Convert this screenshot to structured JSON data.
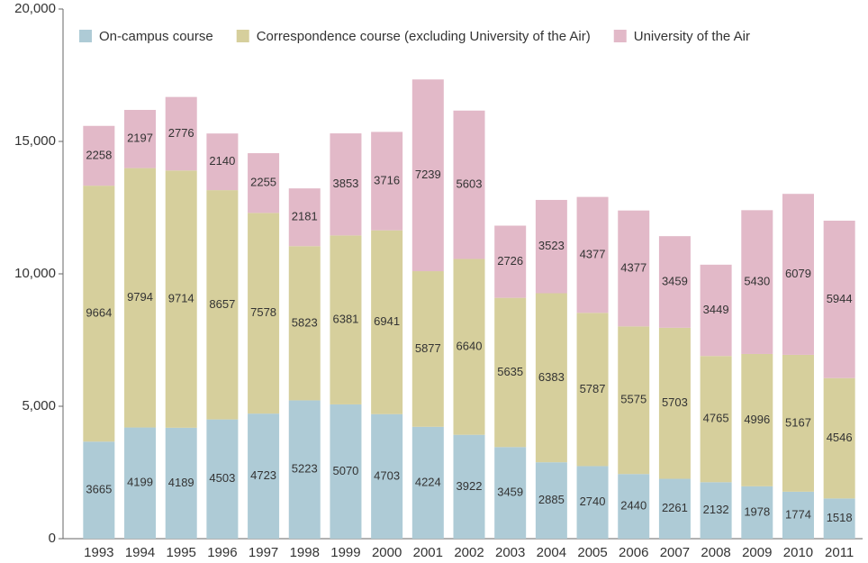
{
  "chart_data": {
    "type": "stacked_bar",
    "categories": [
      "1993",
      "1994",
      "1995",
      "1996",
      "1997",
      "1998",
      "1999",
      "2000",
      "2001",
      "2002",
      "2003",
      "2004",
      "2005",
      "2006",
      "2007",
      "2008",
      "2009",
      "2010",
      "2011"
    ],
    "series": [
      {
        "name": "On-campus course",
        "color": "#aecbd6",
        "values": [
          3665,
          4199,
          4189,
          4503,
          4723,
          5223,
          5070,
          4703,
          4224,
          3922,
          3459,
          2885,
          2740,
          2440,
          2261,
          2132,
          1978,
          1774,
          1518
        ]
      },
      {
        "name": "Correspondence course (excluding University of the Air)",
        "color": "#d6cf9c",
        "values": [
          9664,
          9794,
          9714,
          8657,
          7578,
          5823,
          6381,
          6941,
          5877,
          6640,
          5635,
          6383,
          5787,
          5575,
          5703,
          4765,
          4996,
          5167,
          4546
        ]
      },
      {
        "name": "University of the Air",
        "color": "#e2b9c8",
        "values": [
          2258,
          2197,
          2776,
          2140,
          2255,
          2181,
          3853,
          3716,
          7239,
          5603,
          2726,
          3523,
          4377,
          4377,
          3459,
          3449,
          5430,
          6079,
          5944
        ]
      }
    ],
    "ylim": [
      0,
      20000
    ],
    "yticks": [
      0,
      {
        "value": 5000,
        "label": "5,000"
      },
      {
        "value": 10000,
        "label": "10,000"
      },
      {
        "value": 15000,
        "label": "15,000"
      },
      {
        "value": 20000,
        "label": "20,000"
      }
    ],
    "legend": "top"
  }
}
